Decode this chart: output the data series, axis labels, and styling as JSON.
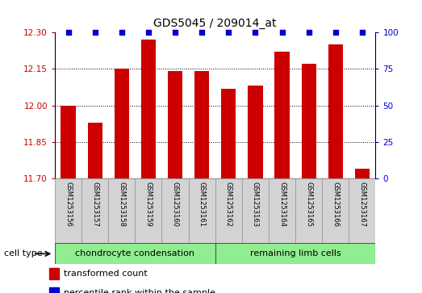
{
  "title": "GDS5045 / 209014_at",
  "samples": [
    "GSM1253156",
    "GSM1253157",
    "GSM1253158",
    "GSM1253159",
    "GSM1253160",
    "GSM1253161",
    "GSM1253162",
    "GSM1253163",
    "GSM1253164",
    "GSM1253165",
    "GSM1253166",
    "GSM1253167"
  ],
  "transformed_counts": [
    12.0,
    11.93,
    12.15,
    12.27,
    12.14,
    12.14,
    12.07,
    12.08,
    12.22,
    12.17,
    12.25,
    11.74
  ],
  "percentile_ranks": [
    100,
    100,
    100,
    100,
    100,
    100,
    100,
    100,
    100,
    100,
    100,
    100
  ],
  "ylim_left": [
    11.7,
    12.3
  ],
  "ylim_right": [
    0,
    100
  ],
  "yticks_left": [
    11.7,
    11.85,
    12.0,
    12.15,
    12.3
  ],
  "yticks_right": [
    0,
    25,
    50,
    75,
    100
  ],
  "bar_color": "#cc0000",
  "dot_color": "#0000cc",
  "cell_type_label": "cell type",
  "legend_bar": "transformed count",
  "legend_dot": "percentile rank within the sample",
  "bar_width": 0.55,
  "group_separator_idx": 6,
  "group1_label": "chondrocyte condensation",
  "group2_label": "remaining limb cells",
  "group_color": "#90ee90",
  "sample_box_color": "#d3d3d3"
}
